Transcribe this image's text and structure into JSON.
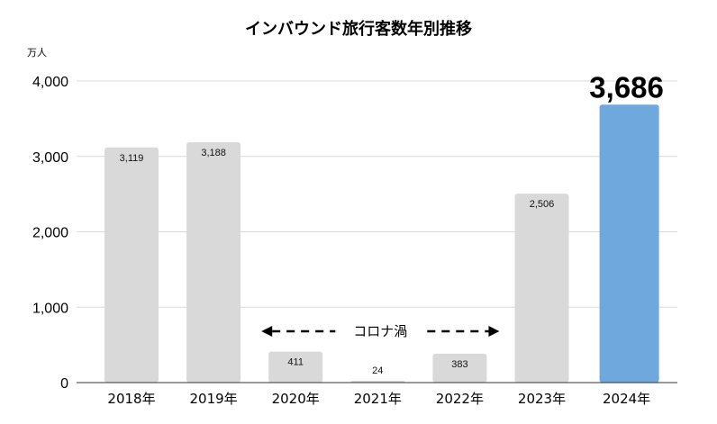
{
  "chart_data": {
    "type": "bar",
    "title": "インバウンド旅行客数年別推移",
    "unit_label": "万人",
    "categories": [
      "2018年",
      "2019年",
      "2020年",
      "2021年",
      "2022年",
      "2023年",
      "2024年"
    ],
    "values": [
      3119,
      3188,
      411,
      24,
      383,
      2506,
      3686
    ],
    "value_labels": [
      "3,119",
      "3,188",
      "411",
      "24",
      "383",
      "2,506",
      "3,686"
    ],
    "yticks": [
      0,
      1000,
      2000,
      3000,
      4000
    ],
    "ytick_labels": [
      "0",
      "1,000",
      "2,000",
      "3,000",
      "4,000"
    ],
    "ylim": [
      0,
      4000
    ],
    "grid": true,
    "highlight_index": 6,
    "colors": {
      "bar": "#d9d9d9",
      "highlight": "#6fa8dc"
    },
    "annotation": {
      "text": "コロナ渦",
      "from_category": "2020年",
      "to_category": "2022年"
    }
  }
}
